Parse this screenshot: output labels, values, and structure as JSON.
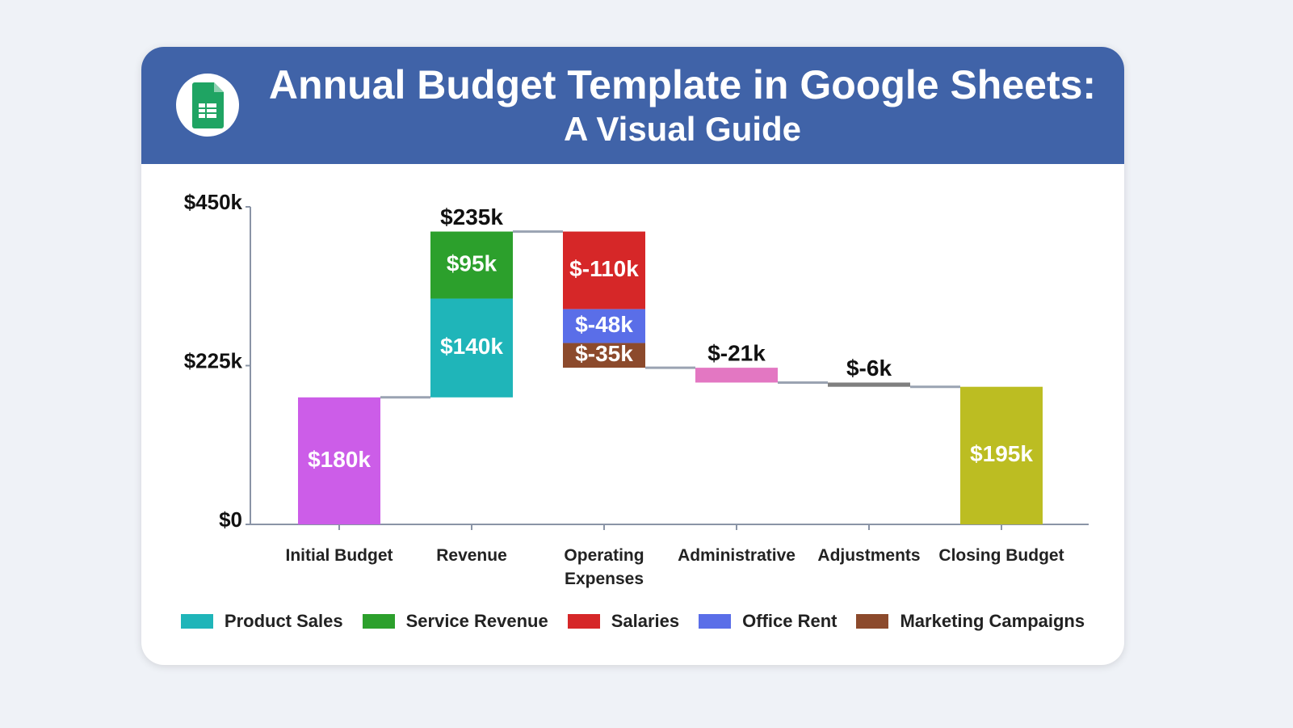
{
  "chart_data": {
    "type": "waterfall",
    "title": "Annual Budget Template in Google Sheets:",
    "subtitle": "A Visual Guide",
    "categories": [
      "Initial Budget",
      "Revenue",
      "Operating Expenses",
      "Administrative",
      "Adjustments",
      "Closing Budget"
    ],
    "values": [
      180000,
      null,
      null,
      -21000,
      -6000,
      195000
    ],
    "value_labels": [
      "$180k",
      null,
      null,
      "$-21k",
      "$-6k",
      "$195k"
    ],
    "colors": [
      "#cc5de8",
      null,
      null,
      "#e377c2",
      "#7f7f7f",
      "#bcbd22"
    ],
    "is_total": [
      true,
      false,
      false,
      false,
      false,
      true
    ],
    "sum_values": [
      null,
      235000,
      null,
      null,
      null,
      null
    ],
    "sum_labels": [
      null,
      "$235k",
      null,
      null,
      null,
      null
    ],
    "series": [
      {
        "name": "Product Sales",
        "color": "#1fb5b9",
        "values": [
          null,
          140000,
          null,
          null,
          null,
          null
        ],
        "value_labels": [
          null,
          "$140k",
          null,
          null,
          null,
          null
        ]
      },
      {
        "name": "Service Revenue",
        "color": "#2ca02c",
        "values": [
          null,
          95000,
          null,
          null,
          null,
          null
        ],
        "value_labels": [
          null,
          "$95k",
          null,
          null,
          null,
          null
        ]
      },
      {
        "name": "Salaries",
        "color": "#d62728",
        "values": [
          null,
          null,
          -110000,
          null,
          null,
          null
        ],
        "value_labels": [
          null,
          null,
          "$-110k",
          null,
          null,
          null
        ]
      },
      {
        "name": "Office Rent",
        "color": "#5a6ee8",
        "values": [
          null,
          null,
          -48000,
          null,
          null,
          null
        ],
        "value_labels": [
          null,
          null,
          "$-48k",
          null,
          null,
          null
        ]
      },
      {
        "name": "Marketing Campaigns",
        "color": "#8c4a2c",
        "values": [
          null,
          null,
          -35000,
          null,
          null,
          null
        ],
        "value_labels": [
          null,
          null,
          "$-35k",
          null,
          null,
          null
        ]
      }
    ],
    "ylim": [
      0,
      450000
    ],
    "yticks": [
      {
        "value": 0,
        "label": "$0"
      },
      {
        "value": 225000,
        "label": "$225k"
      },
      {
        "value": 450000,
        "label": "$450k"
      }
    ]
  }
}
